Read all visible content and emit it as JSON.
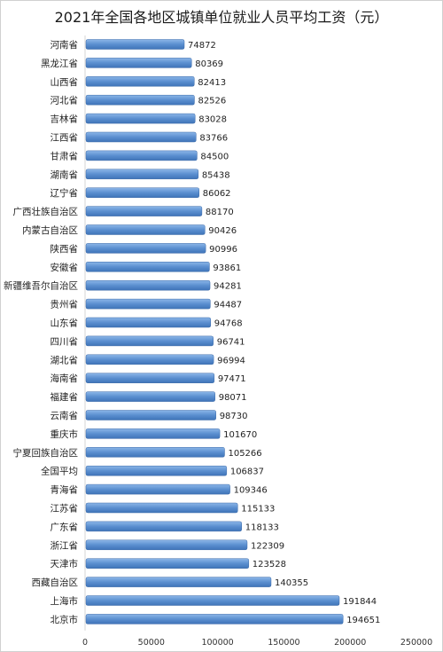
{
  "chart_data": {
    "type": "bar",
    "orientation": "horizontal",
    "title": "2021年全国各地区城镇单位就业人员平均工资（元）",
    "xlabel": "",
    "ylabel": "",
    "xlim": [
      0,
      250000
    ],
    "xticks": [
      0,
      50000,
      100000,
      150000,
      200000,
      250000
    ],
    "grid": false,
    "legend": "none",
    "bar_color": "#5b8fd0",
    "categories": [
      "河南省",
      "黑龙江省",
      "山西省",
      "河北省",
      "吉林省",
      "江西省",
      "甘肃省",
      "湖南省",
      "辽宁省",
      "广西壮族自治区",
      "内蒙古自治区",
      "陕西省",
      "安徽省",
      "新疆维吾尔自治区",
      "贵州省",
      "山东省",
      "四川省",
      "湖北省",
      "海南省",
      "福建省",
      "云南省",
      "重庆市",
      "宁夏回族自治区",
      "全国平均",
      "青海省",
      "江苏省",
      "广东省",
      "浙江省",
      "天津市",
      "西藏自治区",
      "上海市",
      "北京市"
    ],
    "values": [
      74872,
      80369,
      82413,
      82526,
      83028,
      83766,
      84500,
      85438,
      86062,
      88170,
      90426,
      90996,
      93861,
      94281,
      94487,
      94768,
      96741,
      96994,
      97471,
      98071,
      98730,
      101670,
      105266,
      106837,
      109346,
      115133,
      118133,
      122309,
      123528,
      140355,
      191844,
      194651
    ]
  }
}
